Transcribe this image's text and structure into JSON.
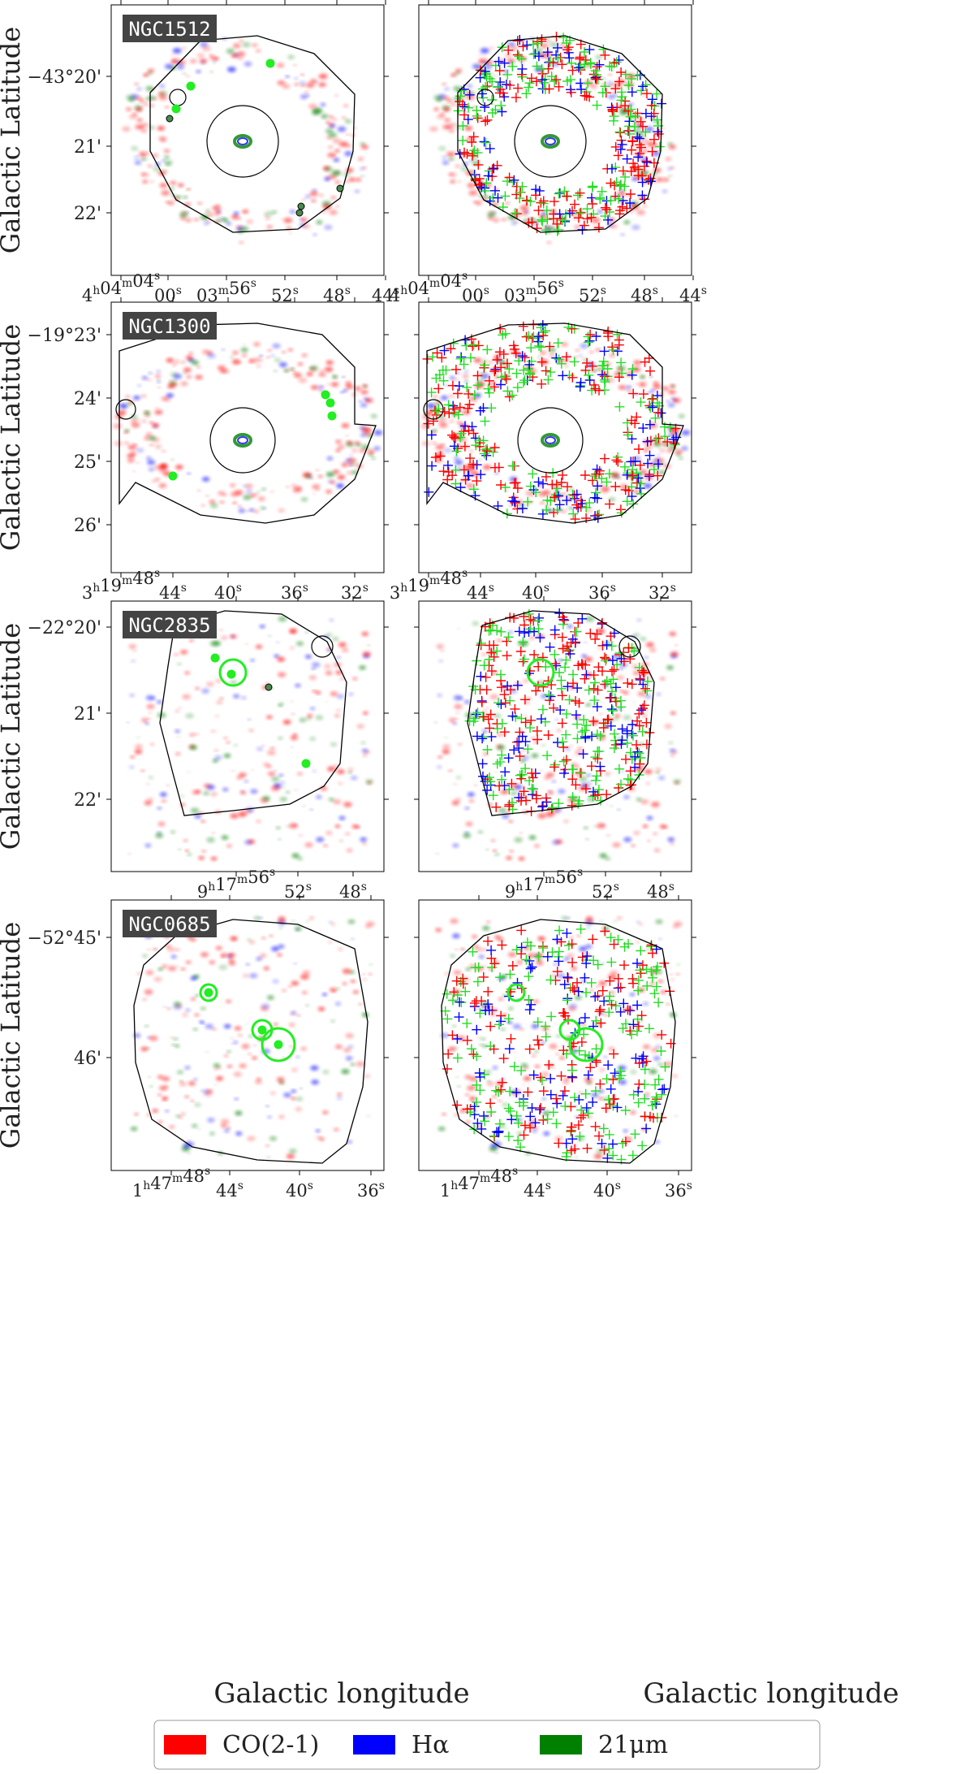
{
  "figure": {
    "xlabel": "Galactic longitude",
    "ylabel": "Galactic Latitude",
    "legend": [
      {
        "label": "CO(2-1)",
        "color": "#ff0000"
      },
      {
        "label": "Hα",
        "color": "#0000ff"
      },
      {
        "label": "21μm",
        "color": "#008000"
      }
    ],
    "colors": {
      "co": "#ff0000",
      "ha": "#0000ff",
      "ir": "#008000",
      "circle_bright": "#22ee22",
      "outline": "#000000",
      "label_bg": "#444444"
    }
  },
  "chart_data": [
    {
      "type": "image-panel-row",
      "galaxy": "NGC1512",
      "yticks": [
        {
          "value": "-43.333",
          "label": "−43°20'"
        },
        {
          "value": "-43.350",
          "label": "21'"
        },
        {
          "value": "-43.367",
          "label": "22'"
        }
      ],
      "xticks": [
        "4h04m04s",
        "00s",
        "03m56s",
        "52s",
        "48s",
        "44s"
      ],
      "xticks_display": [
        {
          "h": "4",
          "hs": "h",
          "m": "04",
          "ms": "m",
          "s": "04",
          "ss": "s"
        },
        {
          "s": "00",
          "ss": "s"
        },
        {
          "m": "03",
          "ms": "m",
          "s": "56",
          "ss": "s"
        },
        {
          "s": "52",
          "ss": "s"
        },
        {
          "s": "48",
          "ss": "s"
        },
        {
          "s": "44",
          "ss": "s"
        }
      ]
    },
    {
      "type": "image-panel-row",
      "galaxy": "NGC1300",
      "yticks": [
        {
          "value": "-19.383",
          "label": "−19°23'"
        },
        {
          "value": "-19.400",
          "label": "24'"
        },
        {
          "value": "-19.417",
          "label": "25'"
        },
        {
          "value": "-19.433",
          "label": "26'"
        }
      ],
      "xticks": [
        "3h19m48s",
        "44s",
        "40s",
        "36s",
        "32s"
      ],
      "xticks_display": [
        {
          "h": "3",
          "hs": "h",
          "m": "19",
          "ms": "m",
          "s": "48",
          "ss": "s"
        },
        {
          "s": "44",
          "ss": "s"
        },
        {
          "s": "40",
          "ss": "s"
        },
        {
          "s": "36",
          "ss": "s"
        },
        {
          "s": "32",
          "ss": "s"
        }
      ]
    },
    {
      "type": "image-panel-row",
      "galaxy": "NGC2835",
      "yticks": [
        {
          "value": "-22.333",
          "label": "−22°20'"
        },
        {
          "value": "-22.350",
          "label": "21'"
        },
        {
          "value": "-22.367",
          "label": "22'"
        }
      ],
      "xticks": [
        "9h17m56s",
        "52s",
        "48s"
      ],
      "xticks_display": [
        {
          "h": "9",
          "hs": "h",
          "m": "17",
          "ms": "m",
          "s": "56",
          "ss": "s"
        },
        {
          "s": "52",
          "ss": "s"
        },
        {
          "s": "48",
          "ss": "s"
        }
      ]
    },
    {
      "type": "image-panel-row",
      "galaxy": "NGC0685",
      "yticks": [
        {
          "value": "-52.750",
          "label": "−52°45'"
        },
        {
          "value": "-52.767",
          "label": "46'"
        }
      ],
      "xticks": [
        "1h47m48s",
        "44s",
        "40s",
        "36s"
      ],
      "xticks_display": [
        {
          "h": "1",
          "hs": "h",
          "m": "47",
          "ms": "m",
          "s": "48",
          "ss": "s"
        },
        {
          "s": "44",
          "ss": "s"
        },
        {
          "s": "40",
          "ss": "s"
        },
        {
          "s": "36",
          "ss": "s"
        }
      ]
    }
  ]
}
